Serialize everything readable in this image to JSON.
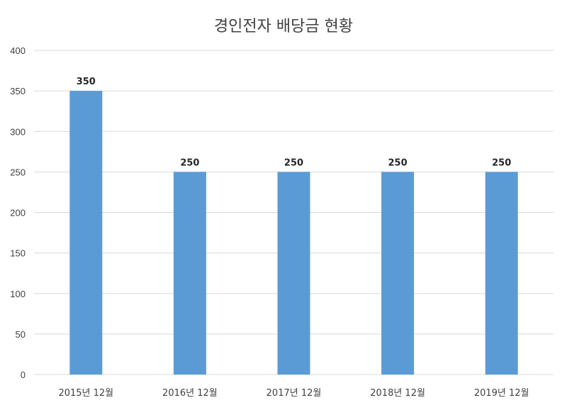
{
  "chart_data": {
    "type": "bar",
    "title": "경인전자 배당금 현황",
    "categories": [
      "2015년 12월",
      "2016년 12월",
      "2017년 12월",
      "2018년 12월",
      "2019년 12월"
    ],
    "values": [
      350,
      250,
      250,
      250,
      250
    ],
    "data_labels": [
      "350",
      "250",
      "250",
      "250",
      "250"
    ],
    "y_ticks": [
      0,
      50,
      100,
      150,
      200,
      250,
      300,
      350,
      400
    ],
    "ylim": [
      0,
      400
    ],
    "grid": true,
    "legend": "none",
    "colors": {
      "bar": "#5b9bd5",
      "grid": "#d9d9d9",
      "text": "#404040"
    }
  }
}
